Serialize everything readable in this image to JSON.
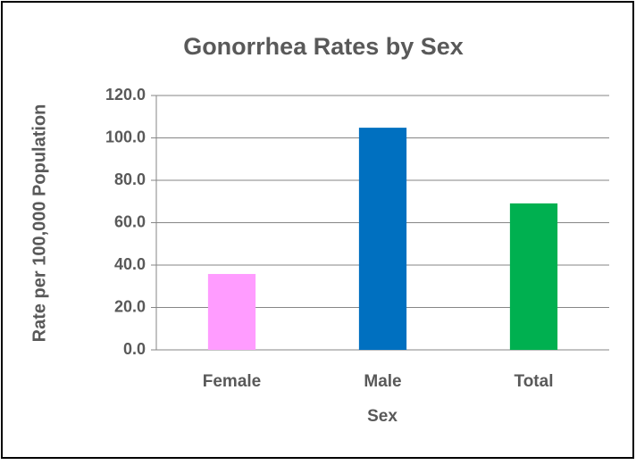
{
  "chart_data": {
    "type": "bar",
    "title": "Gonorrhea Rates by Sex",
    "x_label": "Sex",
    "y_label": "Rate per 100,000 Population",
    "categories": [
      "Female",
      "Male",
      "Total"
    ],
    "values": [
      35.8,
      104.8,
      69.1
    ],
    "colors": [
      "#ff9cff",
      "#0070c0",
      "#00b050"
    ],
    "ylim": [
      0,
      120
    ],
    "yticks": [
      {
        "value": 0,
        "label": "0.0"
      },
      {
        "value": 20,
        "label": "20.0"
      },
      {
        "value": 40,
        "label": "40.0"
      },
      {
        "value": 60,
        "label": "60.0"
      },
      {
        "value": 80,
        "label": "80.0"
      },
      {
        "value": 100,
        "label": "100.0"
      },
      {
        "value": 120,
        "label": "120.0"
      }
    ],
    "grid": true
  }
}
